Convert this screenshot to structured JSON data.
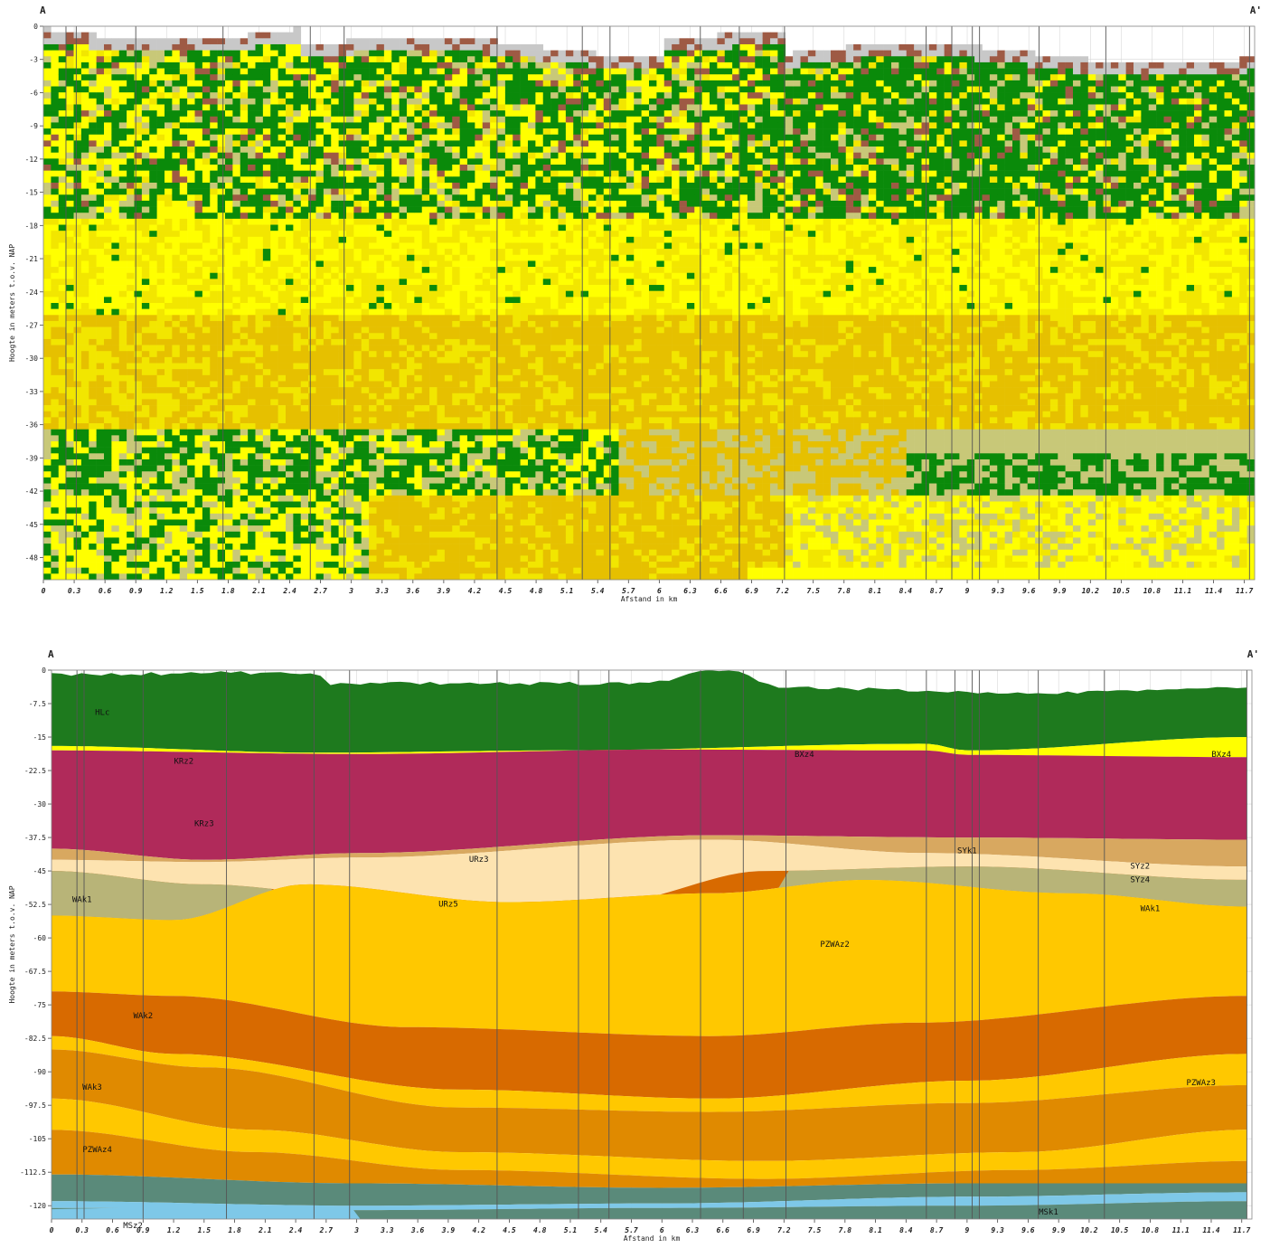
{
  "colors": {
    "grass": "#0a8a0a",
    "peat_brown": "#9e5a44",
    "grey_fill": "#c8c8c8",
    "yellow_bright": "#ffff00",
    "yellow": "#f2e600",
    "yellow_deep": "#e6c000",
    "olive_light": "#c8c878",
    "dark_green": "#1e7a1e",
    "magenta": "#b02a5a",
    "khaki": "#b8b478",
    "orange": "#e08a00",
    "orange_deep": "#d86a00",
    "gold": "#ffc800",
    "tan": "#d8a860",
    "peach": "#fde3b0",
    "teal": "#5a8a7a",
    "light_blue": "#7ec8e8",
    "boreline": "#555555"
  },
  "chart_data": [
    {
      "type": "heatmap",
      "title": "",
      "corner_left": "A",
      "corner_right": "A'",
      "xlabel": "Afstand in km",
      "ylabel": "Hoogte in meters t.o.v. NAP",
      "xlim": [
        0,
        11.8
      ],
      "ylim": [
        -50,
        0
      ],
      "x_ticks": [
        "0",
        "0.3",
        "0.6",
        "0.9",
        "1.2",
        "1.5",
        "1.8",
        "2.1",
        "2.4",
        "2.7",
        "3",
        "3.3",
        "3.6",
        "3.9",
        "4.2",
        "4.5",
        "4.8",
        "5.1",
        "5.4",
        "5.7",
        "6",
        "6.3",
        "6.6",
        "6.9",
        "7.2",
        "7.5",
        "7.8",
        "8.1",
        "8.4",
        "8.7",
        "9",
        "9.3",
        "9.6",
        "9.9",
        "10.2",
        "10.5",
        "10.8",
        "11.1",
        "11.4",
        "11.7"
      ],
      "y_ticks": [
        "0",
        "-3",
        "-6",
        "-9",
        "-12",
        "-15",
        "-18",
        "-21",
        "-24",
        "-27",
        "-30",
        "-33",
        "-36",
        "-39",
        "-42",
        "-45",
        "-48"
      ],
      "boreholes_km": [
        0.22,
        0.32,
        0.9,
        1.75,
        2.6,
        2.93,
        4.42,
        5.25,
        5.52,
        6.4,
        6.78,
        7.22,
        8.6,
        8.85,
        9.05,
        9.12,
        9.7,
        10.35,
        11.75
      ],
      "bands": [
        {
          "top": -1,
          "bottom": -3,
          "color": "grey_fill"
        },
        {
          "top": -3,
          "bottom": -18,
          "color": "grass"
        },
        {
          "top": -18,
          "bottom": -26,
          "color": "yellow_bright"
        },
        {
          "top": -26,
          "bottom": -36,
          "color": "yellow_deep"
        },
        {
          "top": -36,
          "bottom": -42,
          "color": "grass"
        },
        {
          "top": -42,
          "bottom": -50,
          "color": "yellow"
        }
      ]
    },
    {
      "type": "area",
      "title": "",
      "corner_left": "A",
      "corner_right": "A'",
      "xlabel": "Afstand in km",
      "ylabel": "Hoogte in meters t.o.v. NAP",
      "xlim": [
        0,
        11.8
      ],
      "ylim": [
        -123,
        0
      ],
      "x_ticks": [
        "0",
        "0.3",
        "0.6",
        "0.9",
        "1.2",
        "1.5",
        "1.8",
        "2.1",
        "2.4",
        "2.7",
        "3",
        "3.3",
        "3.6",
        "3.9",
        "4.2",
        "4.5",
        "4.8",
        "5.1",
        "5.4",
        "5.7",
        "6",
        "6.3",
        "6.6",
        "6.9",
        "7.2",
        "7.5",
        "7.8",
        "8.1",
        "8.4",
        "8.7",
        "9",
        "9.3",
        "9.6",
        "9.9",
        "10.2",
        "10.5",
        "10.8",
        "11.1",
        "11.4",
        "11.7"
      ],
      "y_ticks": [
        "0",
        "-7.5",
        "-15",
        "-22.5",
        "-30",
        "-37.5",
        "-45",
        "-52.5",
        "-60",
        "-67.5",
        "-75",
        "-82.5",
        "-90",
        "-97.5",
        "-105",
        "-112.5",
        "-120"
      ],
      "boreholes_km": [
        0.25,
        0.32,
        0.9,
        1.72,
        2.58,
        2.93,
        4.38,
        5.18,
        5.48,
        6.38,
        6.8,
        7.22,
        8.6,
        8.88,
        9.05,
        9.12,
        9.7,
        10.35,
        11.75
      ],
      "layer_labels": [
        {
          "text": "HLc",
          "x": 0.5,
          "y": -10
        },
        {
          "text": "KRz2",
          "x": 1.3,
          "y": -21
        },
        {
          "text": "KRz3",
          "x": 1.5,
          "y": -35
        },
        {
          "text": "BXz4",
          "x": 7.4,
          "y": -19.5
        },
        {
          "text": "BXz4",
          "x": 11.5,
          "y": -19.5
        },
        {
          "text": "URz3",
          "x": 4.2,
          "y": -43
        },
        {
          "text": "URz5",
          "x": 3.9,
          "y": -53
        },
        {
          "text": "SYk1",
          "x": 9.0,
          "y": -41
        },
        {
          "text": "SYz2",
          "x": 10.7,
          "y": -44.5
        },
        {
          "text": "SYz4",
          "x": 10.7,
          "y": -47.5
        },
        {
          "text": "WAk1",
          "x": 0.3,
          "y": -52
        },
        {
          "text": "WAk1",
          "x": 10.8,
          "y": -54
        },
        {
          "text": "PZWAz2",
          "x": 7.7,
          "y": -62
        },
        {
          "text": "WAk2",
          "x": 0.9,
          "y": -78
        },
        {
          "text": "WAk3",
          "x": 0.4,
          "y": -94
        },
        {
          "text": "PZWAz3",
          "x": 11.3,
          "y": -93
        },
        {
          "text": "PZWAz4",
          "x": 0.45,
          "y": -108
        },
        {
          "text": "MSk1",
          "x": 9.8,
          "y": -122
        },
        {
          "text": "MSz2",
          "x": 0.8,
          "y": -125
        }
      ]
    }
  ]
}
